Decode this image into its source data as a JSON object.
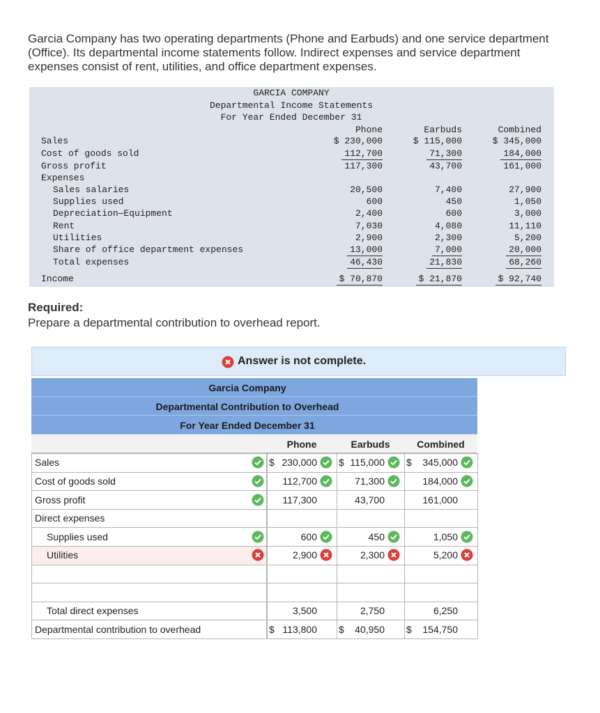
{
  "intro": [
    "Garcia Company has two operating departments (Phone and Earbuds) and one service department",
    "(Office). Its departmental income statements follow. Indirect expenses and service department",
    "expenses consist of rent, utilities, and office department expenses."
  ],
  "statement": {
    "title": [
      "GARCIA COMPANY",
      "Departmental Income Statements",
      "For Year Ended December 31"
    ],
    "columns": [
      "Phone",
      "Earbuds",
      "Combined"
    ],
    "rows": [
      {
        "label": "Sales",
        "values": [
          "$ 230,000",
          "$ 115,000",
          "$ 345,000"
        ]
      },
      {
        "label": "Cost of goods sold",
        "values": [
          "112,700",
          "71,300",
          "184,000"
        ]
      },
      {
        "label": "Gross profit",
        "values": [
          "117,300",
          "43,700",
          "161,000"
        ]
      },
      {
        "label": "Expenses"
      },
      {
        "label": "Sales salaries",
        "values": [
          "20,500",
          "7,400",
          "27,900"
        ]
      },
      {
        "label": "Supplies used",
        "values": [
          "600",
          "450",
          "1,050"
        ]
      },
      {
        "label": "Depreciation—Equipment",
        "values": [
          "2,400",
          "600",
          "3,000"
        ]
      },
      {
        "label": "Rent",
        "values": [
          "7,030",
          "4,080",
          "11,110"
        ]
      },
      {
        "label": "Utilities",
        "values": [
          "2,900",
          "2,300",
          "5,200"
        ]
      },
      {
        "label": "Share of office department expenses",
        "values": [
          "13,000",
          "7,000",
          "20,000"
        ]
      },
      {
        "label": "Total expenses",
        "values": [
          "46,430",
          "21,830",
          "68,260"
        ]
      },
      {
        "label": "Income",
        "values": [
          "$ 70,870",
          "$ 21,870",
          "$ 92,740"
        ]
      }
    ]
  },
  "required": {
    "heading": "Required:",
    "text": "Prepare a departmental contribution to overhead report."
  },
  "answer": {
    "status": "Answer is not complete.",
    "title": [
      "Garcia Company",
      "Departmental Contribution to Overhead",
      "For Year Ended December 31"
    ],
    "columns": [
      "Phone",
      "Earbuds",
      "Combined"
    ],
    "rows": [
      {
        "label": "Sales",
        "check": "correct",
        "cells": [
          {
            "prefix": "$",
            "value": "230,000",
            "check": "correct"
          },
          {
            "prefix": "$",
            "value": "115,000",
            "check": "correct"
          },
          {
            "prefix": "$",
            "value": "345,000",
            "check": "correct"
          }
        ]
      },
      {
        "label": "Cost of goods sold",
        "check": "correct",
        "cells": [
          {
            "value": "112,700",
            "check": "correct"
          },
          {
            "value": "71,300",
            "check": "correct"
          },
          {
            "value": "184,000",
            "check": "correct"
          }
        ]
      },
      {
        "label": "Gross profit",
        "check": "correct",
        "cells": [
          {
            "value": "117,300"
          },
          {
            "value": "43,700"
          },
          {
            "value": "161,000"
          }
        ]
      },
      {
        "label": "Direct expenses"
      },
      {
        "label": "Supplies used",
        "check": "correct",
        "cells": [
          {
            "value": "600",
            "check": "correct"
          },
          {
            "value": "450",
            "check": "correct"
          },
          {
            "value": "1,050",
            "check": "correct"
          }
        ]
      },
      {
        "label": "Utilities",
        "check": "incorrect",
        "cells": [
          {
            "value": "2,900",
            "check": "incorrect"
          },
          {
            "value": "2,300",
            "check": "incorrect"
          },
          {
            "value": "5,200",
            "check": "incorrect"
          }
        ]
      },
      null,
      null,
      {
        "label": "Total direct expenses",
        "cells": [
          {
            "value": "3,500"
          },
          {
            "value": "2,750"
          },
          {
            "value": "6,250"
          }
        ]
      },
      {
        "label": "Departmental contribution to overhead",
        "cells": [
          {
            "prefix": "$",
            "value": "113,800"
          },
          {
            "prefix": "$",
            "value": "40,950"
          },
          {
            "prefix": "$",
            "value": "154,750"
          }
        ]
      }
    ]
  }
}
